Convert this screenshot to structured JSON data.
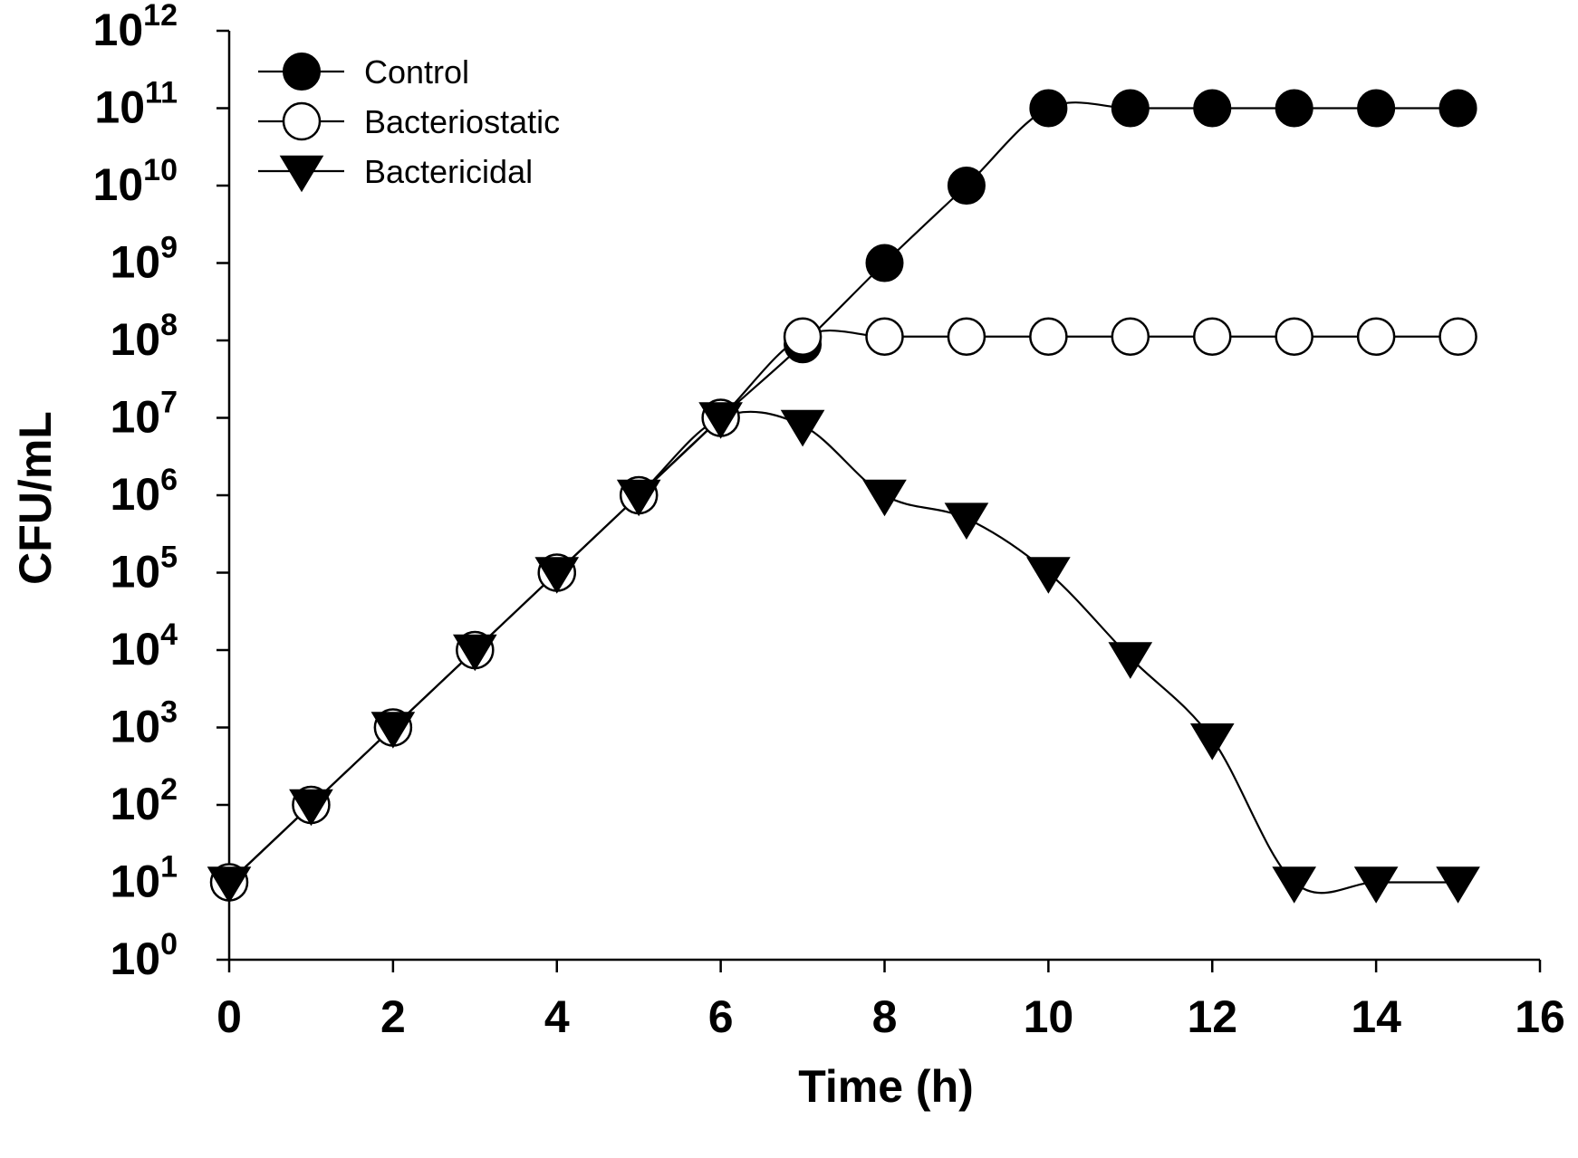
{
  "chart_data": {
    "type": "line",
    "title": "",
    "xlabel": "Time (h)",
    "ylabel": "CFU/mL",
    "xlim": [
      0,
      16
    ],
    "x_ticks": [
      0,
      2,
      4,
      6,
      8,
      10,
      12,
      14,
      16
    ],
    "x_tick_labels": [
      "0",
      "2",
      "4",
      "6",
      "8",
      "10",
      "12",
      "14",
      "16"
    ],
    "y_scale": "log10",
    "ylim_exponent": [
      0,
      12
    ],
    "y_tick_base": "10",
    "y_tick_exponents": [
      "0",
      "1",
      "2",
      "3",
      "4",
      "5",
      "6",
      "7",
      "8",
      "9",
      "10",
      "11",
      "12"
    ],
    "grid": false,
    "legend_position": "top-left",
    "series": [
      {
        "name": "Control",
        "marker": "filled-circle",
        "x": [
          0,
          1,
          2,
          3,
          4,
          5,
          6,
          7,
          8,
          9,
          10,
          11,
          12,
          13,
          14,
          15
        ],
        "log10_values": [
          1,
          2,
          3,
          4,
          5,
          6,
          7,
          7.95,
          9,
          10,
          11,
          11,
          11,
          11,
          11,
          11
        ]
      },
      {
        "name": "Bacteriostatic",
        "marker": "open-circle",
        "x": [
          0,
          1,
          2,
          3,
          4,
          5,
          6,
          7,
          8,
          9,
          10,
          11,
          12,
          13,
          14,
          15
        ],
        "log10_values": [
          1,
          2,
          3,
          4,
          5,
          6,
          7,
          8.05,
          8.05,
          8.05,
          8.05,
          8.05,
          8.05,
          8.05,
          8.05,
          8.05
        ]
      },
      {
        "name": "Bactericidal",
        "marker": "filled-triangle-down",
        "x": [
          0,
          1,
          2,
          3,
          4,
          5,
          6,
          7,
          8,
          9,
          10,
          11,
          12,
          13,
          14,
          15
        ],
        "log10_values": [
          1,
          2,
          3,
          4,
          5,
          6,
          7,
          6.9,
          6,
          5.7,
          5,
          3.9,
          2.85,
          1,
          1,
          1
        ]
      }
    ]
  }
}
